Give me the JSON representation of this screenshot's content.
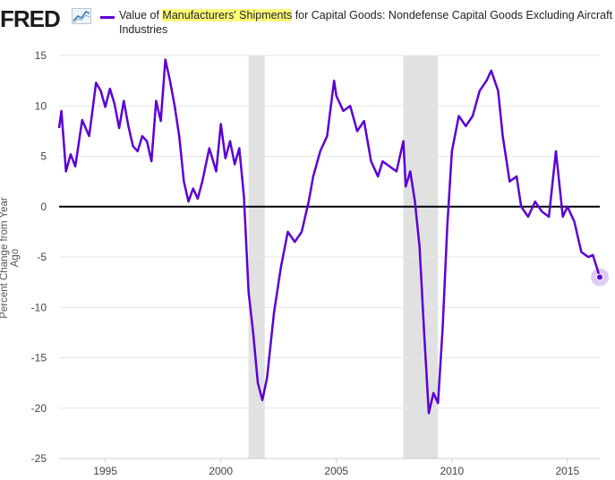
{
  "header": {
    "logo_text": "FRED",
    "legend_prefix": "Value of ",
    "legend_highlight": "Manufacturers' Shipments",
    "legend_suffix": " for Capital Goods: Nondefense Capital Goods Excluding Aircraft Industries"
  },
  "colors": {
    "series": "#5b00d6",
    "highlight": "#fffb7a",
    "recession": "#e1e1e1",
    "zero_line": "#000000"
  },
  "chart_data": {
    "type": "line",
    "title": "Value of Manufacturers' Shipments for Capital Goods: Nondefense Capital Goods Excluding Aircraft Industries",
    "xlabel": "",
    "ylabel": "Percent Change from Year Ago",
    "xlim": [
      1993.0,
      2016.4
    ],
    "ylim": [
      -25,
      15
    ],
    "x_ticks": [
      1995,
      2000,
      2005,
      2010,
      2015
    ],
    "y_ticks": [
      15,
      10,
      5,
      0,
      -5,
      -10,
      -15,
      -20,
      -25
    ],
    "grid": "horizontal",
    "recessions": [
      [
        2001.2,
        2001.9
      ],
      [
        2007.9,
        2009.4
      ]
    ],
    "series": [
      {
        "name": "Value of Manufacturers' Shipments for Capital Goods: Nondefense Capital Goods Excluding Aircraft Industries",
        "x": [
          1993.0,
          1993.1,
          1993.3,
          1993.5,
          1993.7,
          1994.0,
          1994.3,
          1994.6,
          1994.8,
          1995.0,
          1995.2,
          1995.4,
          1995.6,
          1995.8,
          1996.0,
          1996.2,
          1996.4,
          1996.6,
          1996.8,
          1997.0,
          1997.2,
          1997.4,
          1997.6,
          1997.8,
          1998.0,
          1998.2,
          1998.4,
          1998.6,
          1998.8,
          1999.0,
          1999.2,
          1999.5,
          1999.8,
          2000.0,
          2000.2,
          2000.4,
          2000.6,
          2000.8,
          2001.0,
          2001.2,
          2001.4,
          2001.6,
          2001.8,
          2002.0,
          2002.3,
          2002.6,
          2002.9,
          2003.2,
          2003.5,
          2003.8,
          2004.0,
          2004.3,
          2004.6,
          2004.9,
          2005.0,
          2005.3,
          2005.6,
          2005.9,
          2006.2,
          2006.5,
          2006.8,
          2007.0,
          2007.3,
          2007.6,
          2007.9,
          2008.0,
          2008.2,
          2008.4,
          2008.6,
          2008.8,
          2009.0,
          2009.2,
          2009.4,
          2009.6,
          2009.8,
          2010.0,
          2010.3,
          2010.6,
          2010.9,
          2011.2,
          2011.5,
          2011.7,
          2012.0,
          2012.2,
          2012.5,
          2012.8,
          2013.0,
          2013.3,
          2013.6,
          2013.9,
          2014.2,
          2014.5,
          2014.8,
          2015.0,
          2015.3,
          2015.6,
          2015.9,
          2016.1,
          2016.4
        ],
        "values": [
          7.8,
          9.5,
          3.5,
          5.2,
          4.0,
          8.6,
          7.0,
          12.3,
          11.5,
          9.9,
          11.7,
          10.2,
          7.8,
          10.5,
          8.0,
          6.0,
          5.5,
          7.0,
          6.5,
          4.5,
          10.5,
          8.5,
          14.6,
          12.5,
          10.0,
          7.0,
          2.5,
          0.5,
          1.8,
          0.8,
          2.5,
          5.8,
          3.5,
          8.2,
          4.8,
          6.5,
          4.2,
          5.8,
          1.0,
          -8.5,
          -12.5,
          -17.5,
          -19.2,
          -17.0,
          -10.5,
          -6.0,
          -2.5,
          -3.5,
          -2.5,
          0.5,
          3.0,
          5.5,
          7.0,
          12.5,
          11.0,
          9.5,
          10.0,
          7.5,
          8.5,
          4.5,
          3.0,
          4.5,
          4.0,
          3.5,
          6.5,
          2.0,
          3.5,
          0.5,
          -4.0,
          -12.5,
          -20.5,
          -18.5,
          -19.5,
          -12.0,
          -2.0,
          5.5,
          9.0,
          8.0,
          9.0,
          11.5,
          12.5,
          13.5,
          11.5,
          7.0,
          2.5,
          3.0,
          0.0,
          -1.0,
          0.5,
          -0.5,
          -1.0,
          5.5,
          -1.0,
          0.0,
          -1.5,
          -4.5,
          -5.0,
          -4.8,
          -7.0
        ]
      }
    ]
  }
}
